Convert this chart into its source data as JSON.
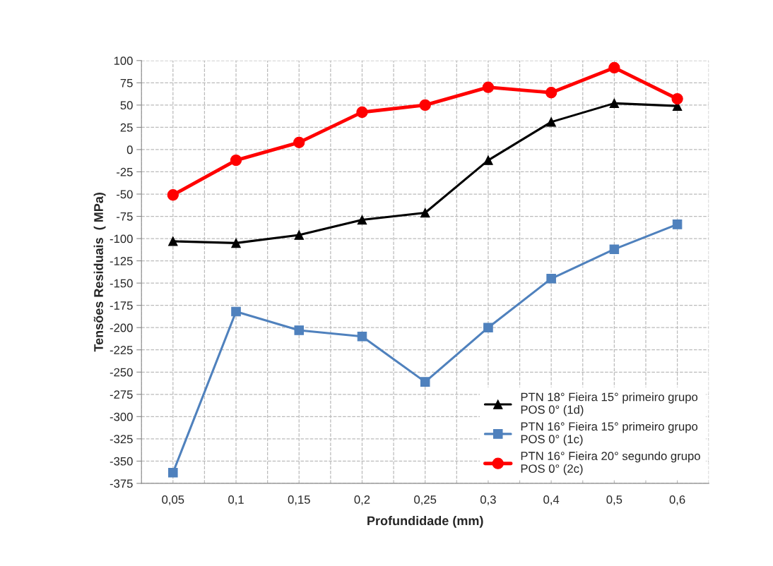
{
  "chart_data": {
    "type": "line",
    "xlabel": "Profundidade (mm)",
    "ylabel": "Tensões Residuais  ( MPa)",
    "categories": [
      "0,05",
      "0,1",
      "0,15",
      "0,2",
      "0,25",
      "0,3",
      "0,4",
      "0,5",
      "0,6"
    ],
    "series": [
      {
        "name": "PTN 18° Fieira 15° primeiro grupo\nPOS 0° (1d)",
        "color": "#000000",
        "marker": "triangle",
        "values": [
          -103,
          -105,
          -96,
          -79,
          -71,
          -12,
          31,
          52,
          49
        ]
      },
      {
        "name": "PTN 16° Fieira 15° primeiro grupo\nPOS 0° (1c)",
        "color": "#4f81bd",
        "marker": "square",
        "values": [
          -363,
          -182,
          -203,
          -210,
          -261,
          -200,
          -145,
          -112,
          -84
        ]
      },
      {
        "name": "PTN 16° Fieira 20° segundo grupo\nPOS 0° (2c)",
        "color": "#ff0000",
        "marker": "circle",
        "values": [
          -51,
          -12,
          8,
          42,
          50,
          70,
          64,
          92,
          57
        ]
      }
    ],
    "ylim": [
      -375,
      100
    ],
    "yticks": [
      -375,
      -350,
      -325,
      -300,
      -275,
      -250,
      -225,
      -200,
      -175,
      -150,
      -125,
      -100,
      -75,
      -50,
      -25,
      0,
      25,
      50,
      75,
      100
    ],
    "grid": true,
    "legend": "bottom right",
    "line_style": "solid"
  }
}
